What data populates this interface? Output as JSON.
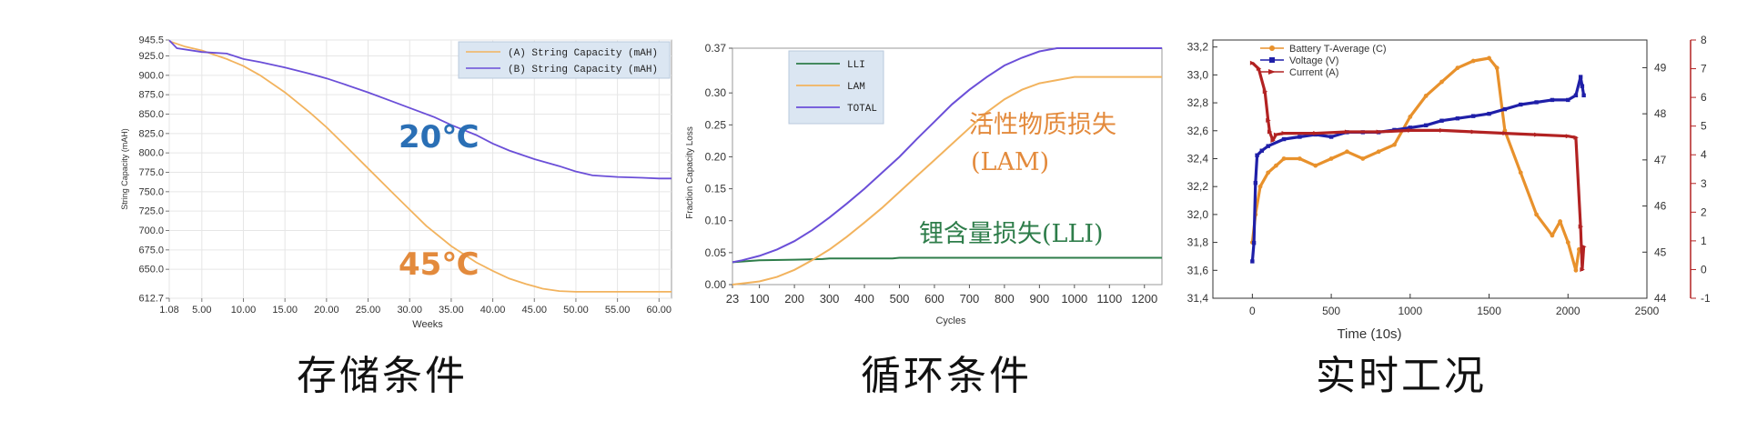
{
  "chart_data": [
    {
      "type": "line",
      "xlabel": "Weeks",
      "ylabel": "String Capacity (mAH)",
      "xticks": [
        "1.08",
        "5.00",
        "10.00",
        "15.00",
        "20.00",
        "25.00",
        "30.00",
        "35.00",
        "40.00",
        "45.00",
        "50.00",
        "55.00",
        "60.00"
      ],
      "xtick_values": [
        1.08,
        5,
        10,
        15,
        20,
        25,
        30,
        35,
        40,
        45,
        50,
        55,
        60
      ],
      "yticks": [
        "945.5",
        "925.0",
        "900.0",
        "875.0",
        "850.0",
        "825.0",
        "800.0",
        "775.0",
        "750.0",
        "725.0",
        "700.0",
        "675.0",
        "650.0",
        "612.7"
      ],
      "ytick_values": [
        945.5,
        925,
        900,
        875,
        850,
        825,
        800,
        775,
        750,
        725,
        700,
        675,
        650,
        612.7
      ],
      "xlim": [
        1.08,
        61.5
      ],
      "ylim": [
        612.7,
        945.5
      ],
      "grid": true,
      "legend_position": "top-right",
      "series": [
        {
          "name": "(A) String Capacity (mAH)",
          "color": "#F2B35E",
          "x": [
            1.08,
            3,
            5,
            8,
            10,
            12,
            15,
            18,
            20,
            22,
            25,
            28,
            30,
            32,
            35,
            38,
            40,
            42,
            44,
            45,
            46,
            48,
            50,
            55,
            60,
            61.5
          ],
          "y": [
            944,
            937,
            932,
            921,
            912,
            900,
            878,
            852,
            833,
            812,
            780,
            748,
            727,
            706,
            680,
            659,
            648,
            638,
            631,
            628,
            625,
            622,
            621,
            621,
            621,
            621
          ]
        },
        {
          "name": "(B) String Capacity (mAH)",
          "color": "#6B4FD8",
          "x": [
            1.08,
            2,
            5,
            8,
            10,
            12,
            15,
            18,
            20,
            22,
            25,
            28,
            30,
            33,
            35,
            38,
            40,
            42,
            45,
            48,
            50,
            52,
            55,
            58,
            60,
            61.5
          ],
          "y": [
            945,
            935,
            930,
            928,
            921,
            917,
            910,
            902,
            896,
            889,
            878,
            866,
            858,
            846,
            836,
            823,
            812,
            803,
            792,
            783,
            776,
            771,
            769,
            768,
            767,
            767
          ]
        }
      ],
      "annotations": [
        {
          "text": "20℃",
          "color": "#2A6FB5"
        },
        {
          "text": "45℃",
          "color": "#E38A3C"
        }
      ]
    },
    {
      "type": "line",
      "xlabel": "Cycles",
      "ylabel": "Fraction Capacity Loss",
      "xticks": [
        "23",
        "100",
        "200",
        "300",
        "400",
        "500",
        "600",
        "700",
        "800",
        "900",
        "1000",
        "1100",
        "1200"
      ],
      "xtick_values": [
        23,
        100,
        200,
        300,
        400,
        500,
        600,
        700,
        800,
        900,
        1000,
        1100,
        1200
      ],
      "yticks": [
        "0.00",
        "0.05",
        "0.10",
        "0.15",
        "0.20",
        "0.25",
        "0.30",
        "0.37"
      ],
      "ytick_values": [
        0,
        0.05,
        0.1,
        0.15,
        0.2,
        0.25,
        0.3,
        0.37
      ],
      "xlim": [
        23,
        1250
      ],
      "ylim": [
        0,
        0.37
      ],
      "legend_position": "top-left",
      "series": [
        {
          "name": "LLI",
          "color": "#2E7D4A",
          "x": [
            23,
            100,
            200,
            280,
            300,
            480,
            500,
            1250
          ],
          "y": [
            0.035,
            0.038,
            0.039,
            0.04,
            0.041,
            0.041,
            0.042,
            0.042
          ]
        },
        {
          "name": "LAM",
          "color": "#F2B35E",
          "x": [
            23,
            100,
            150,
            200,
            250,
            300,
            350,
            400,
            450,
            500,
            550,
            600,
            650,
            700,
            750,
            800,
            850,
            900,
            950,
            1000,
            1250
          ],
          "y": [
            0,
            0.005,
            0.012,
            0.023,
            0.038,
            0.055,
            0.075,
            0.097,
            0.12,
            0.145,
            0.17,
            0.195,
            0.22,
            0.245,
            0.27,
            0.29,
            0.305,
            0.315,
            0.32,
            0.325,
            0.325
          ]
        },
        {
          "name": "TOTAL",
          "color": "#6B4FD8",
          "x": [
            23,
            50,
            100,
            150,
            200,
            250,
            300,
            350,
            400,
            450,
            500,
            550,
            600,
            650,
            700,
            750,
            800,
            850,
            900,
            950,
            1000,
            1250
          ],
          "y": [
            0.035,
            0.038,
            0.045,
            0.055,
            0.068,
            0.085,
            0.105,
            0.127,
            0.15,
            0.175,
            0.2,
            0.228,
            0.255,
            0.282,
            0.305,
            0.325,
            0.343,
            0.355,
            0.365,
            0.37,
            0.37,
            0.37
          ]
        }
      ],
      "annotations": [
        {
          "text": "活性物质损失",
          "color": "#E38A3C"
        },
        {
          "text": "(LAM)",
          "color": "#E38A3C"
        },
        {
          "text": "锂含量损失(LLI)",
          "color": "#2E7D4A"
        }
      ]
    },
    {
      "type": "scatter",
      "xlabel": "Time (10s)",
      "xticks": [
        "0",
        "500",
        "1000",
        "1500",
        "2000",
        "2500"
      ],
      "xtick_values": [
        0,
        500,
        1000,
        1500,
        2000,
        2500
      ],
      "xlim": [
        -250,
        2500
      ],
      "left_axis": {
        "ticks": [
          "33,2",
          "33,0",
          "32,8",
          "32,6",
          "32,4",
          "32,2",
          "32,0",
          "31,8",
          "31,6",
          "31,4"
        ],
        "tick_values": [
          33.2,
          33.0,
          32.8,
          32.6,
          32.4,
          32.2,
          32.0,
          31.8,
          31.6,
          31.4
        ],
        "range": [
          31.4,
          33.25
        ],
        "color": "#E8912C"
      },
      "right_axis_1": {
        "ticks": [
          "49",
          "48",
          "47",
          "46",
          "45",
          "44"
        ],
        "tick_values": [
          49,
          48,
          47,
          46,
          45,
          44
        ],
        "range": [
          44,
          49.6
        ],
        "color": "#1F1FA8"
      },
      "right_axis_2": {
        "ticks": [
          "8",
          "7",
          "6",
          "5",
          "4",
          "3",
          "2",
          "1",
          "0",
          "-1"
        ],
        "tick_values": [
          8,
          7,
          6,
          5,
          4,
          3,
          2,
          1,
          0,
          -1
        ],
        "range": [
          -1,
          8
        ],
        "color": "#B22222"
      },
      "legend_position": "top-left",
      "series": [
        {
          "name": "Battery T-Average (C)",
          "color": "#E8912C",
          "axis": "left",
          "x": [
            0,
            20,
            50,
            100,
            150,
            200,
            300,
            400,
            500,
            600,
            700,
            800,
            900,
            1000,
            1100,
            1200,
            1300,
            1400,
            1500,
            1550,
            1600,
            1700,
            1800,
            1900,
            1950,
            2000,
            2050,
            2070
          ],
          "y": [
            31.8,
            32.0,
            32.2,
            32.3,
            32.35,
            32.4,
            32.4,
            32.35,
            32.4,
            32.45,
            32.4,
            32.45,
            32.5,
            32.7,
            32.85,
            32.95,
            33.05,
            33.1,
            33.12,
            33.05,
            32.6,
            32.3,
            32.0,
            31.85,
            31.95,
            31.8,
            31.6,
            31.75
          ]
        },
        {
          "name": "Voltage (V)",
          "color": "#1F1FA8",
          "axis": "right1",
          "x": [
            0,
            10,
            20,
            30,
            60,
            100,
            200,
            300,
            400,
            500,
            600,
            700,
            800,
            900,
            1000,
            1100,
            1200,
            1300,
            1400,
            1500,
            1600,
            1700,
            1800,
            1900,
            2000,
            2050,
            2080,
            2090,
            2100
          ],
          "y": [
            44.8,
            45.2,
            46.5,
            47.1,
            47.2,
            47.3,
            47.45,
            47.5,
            47.55,
            47.5,
            47.6,
            47.6,
            47.6,
            47.65,
            47.7,
            47.75,
            47.85,
            47.9,
            47.95,
            48.0,
            48.1,
            48.2,
            48.25,
            48.3,
            48.3,
            48.4,
            48.8,
            48.6,
            48.4
          ]
        },
        {
          "name": "Current (A)",
          "color": "#B22222",
          "axis": "right2",
          "x": [
            0,
            40,
            80,
            100,
            110,
            130,
            150,
            200,
            400,
            600,
            800,
            1000,
            1200,
            1400,
            1600,
            1800,
            2000,
            2050,
            2080,
            2090,
            2100
          ],
          "y": [
            7.2,
            7.0,
            6.2,
            5.2,
            4.8,
            4.5,
            4.7,
            4.75,
            4.75,
            4.8,
            4.8,
            4.85,
            4.85,
            4.8,
            4.75,
            4.7,
            4.65,
            4.6,
            1.5,
            0,
            0.8
          ]
        }
      ]
    }
  ],
  "captions": [
    "存储条件",
    "循环条件",
    "实时工况"
  ]
}
